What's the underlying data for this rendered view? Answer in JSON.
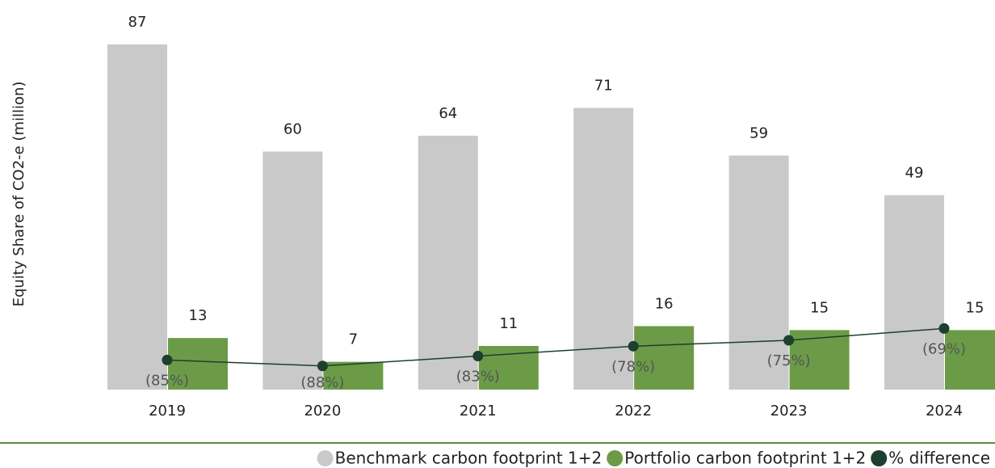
{
  "chart_data": {
    "type": "bar",
    "y_label": "Equity Share of CO2-e (million)",
    "categories": [
      "2019",
      "2020",
      "2021",
      "2022",
      "2023",
      "2024"
    ],
    "series": [
      {
        "name": "Benchmark carbon footprint 1+2",
        "type": "bar",
        "color": "#c9c9c9",
        "values": [
          87,
          60,
          64,
          71,
          59,
          49
        ]
      },
      {
        "name": "Portfolio carbon footprint 1+2",
        "type": "bar",
        "color": "#6b9b47",
        "values": [
          13,
          7,
          11,
          16,
          15,
          15
        ]
      },
      {
        "name": "% difference",
        "type": "line",
        "axis": "y2",
        "color": "#1c3f2f",
        "values": [
          -85,
          -88,
          -83,
          -78,
          -75,
          -69
        ],
        "value_labels": [
          "(85%)",
          "(88%)",
          "(83%)",
          "(78%)",
          "(75%)",
          "(69%)"
        ]
      }
    ],
    "ylim": [
      0,
      87
    ],
    "y2lim": [
      -100,
      75
    ],
    "grid": false,
    "legend": "bottom-right"
  }
}
